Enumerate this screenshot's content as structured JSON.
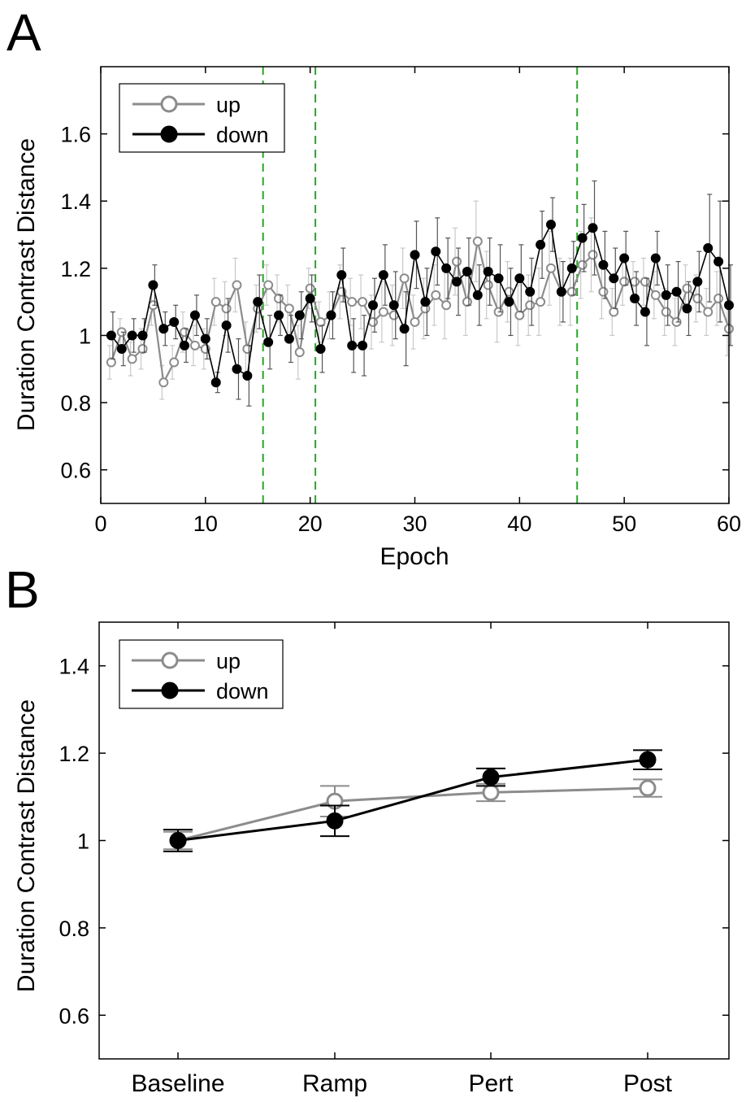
{
  "chart_data": [
    {
      "panel_label": "A",
      "type": "line",
      "xlabel": "Epoch",
      "ylabel": "Duration Contrast Distance",
      "xlim": [
        0,
        60
      ],
      "ylim": [
        0.5,
        1.8
      ],
      "xticks": [
        0,
        10,
        20,
        30,
        40,
        50,
        60
      ],
      "yticks": [
        0.6,
        0.8,
        1,
        1.2,
        1.4,
        1.6
      ],
      "ytick_labels": [
        "0.6",
        "0.8",
        "1",
        "1.2",
        "1.4",
        "1.6"
      ],
      "xtick_labels": [
        "0",
        "10",
        "20",
        "30",
        "40",
        "50",
        "60"
      ],
      "vlines": [
        15.5,
        20.5,
        45.5
      ],
      "vline_color": "#22aa22",
      "legend_position": "top-left",
      "series": [
        {
          "name": "up",
          "color": "#8c8c8c",
          "marker": "open-circle",
          "x": [
            1,
            2,
            3,
            4,
            5,
            6,
            7,
            8,
            9,
            10,
            11,
            12,
            13,
            14,
            15,
            16,
            17,
            18,
            19,
            20,
            21,
            22,
            23,
            24,
            25,
            26,
            27,
            28,
            29,
            30,
            31,
            32,
            33,
            34,
            35,
            36,
            37,
            38,
            39,
            40,
            41,
            42,
            43,
            44,
            45,
            46,
            47,
            48,
            49,
            50,
            51,
            52,
            53,
            54,
            55,
            56,
            57,
            58,
            59,
            60
          ],
          "y": [
            0.92,
            1.01,
            0.93,
            0.96,
            1.09,
            0.86,
            0.92,
            1.01,
            0.97,
            0.96,
            1.1,
            1.08,
            1.15,
            0.96,
            1.08,
            1.15,
            1.11,
            1.08,
            0.95,
            1.14,
            1.04,
            1.06,
            1.13,
            1.1,
            1.1,
            1.04,
            1.07,
            1.06,
            1.17,
            1.04,
            1.08,
            1.12,
            1.09,
            1.22,
            1.1,
            1.28,
            1.15,
            1.07,
            1.13,
            1.06,
            1.09,
            1.1,
            1.2,
            1.13,
            1.13,
            1.21,
            1.24,
            1.13,
            1.07,
            1.16,
            1.16,
            1.16,
            1.12,
            1.07,
            1.04,
            1.14,
            1.11,
            1.07,
            1.11,
            1.02
          ],
          "err": [
            0.05,
            0.04,
            0.05,
            0.06,
            0.06,
            0.05,
            0.05,
            0.06,
            0.06,
            0.06,
            0.07,
            0.08,
            0.08,
            0.08,
            0.07,
            0.06,
            0.07,
            0.07,
            0.08,
            0.06,
            0.06,
            0.07,
            0.08,
            0.07,
            0.08,
            0.08,
            0.09,
            0.09,
            0.09,
            0.08,
            0.09,
            0.09,
            0.1,
            0.1,
            0.1,
            0.12,
            0.1,
            0.09,
            0.09,
            0.09,
            0.09,
            0.1,
            0.11,
            0.1,
            0.1,
            0.1,
            0.11,
            0.08,
            0.07,
            0.07,
            0.06,
            0.07,
            0.07,
            0.07,
            0.07,
            0.07,
            0.07,
            0.07,
            0.08,
            0.08
          ]
        },
        {
          "name": "down",
          "color": "#000000",
          "marker": "filled-circle",
          "x": [
            1,
            2,
            3,
            4,
            5,
            6,
            7,
            8,
            9,
            10,
            11,
            12,
            13,
            14,
            15,
            16,
            17,
            18,
            19,
            20,
            21,
            22,
            23,
            24,
            25,
            26,
            27,
            28,
            29,
            30,
            31,
            32,
            33,
            34,
            35,
            36,
            37,
            38,
            39,
            40,
            41,
            42,
            43,
            44,
            45,
            46,
            47,
            48,
            49,
            50,
            51,
            52,
            53,
            54,
            55,
            56,
            57,
            58,
            59,
            60
          ],
          "y": [
            1.0,
            0.96,
            1.0,
            1.0,
            1.15,
            1.02,
            1.04,
            0.97,
            1.06,
            0.99,
            0.86,
            1.03,
            0.9,
            0.88,
            1.1,
            0.98,
            1.06,
            0.99,
            1.06,
            1.11,
            0.96,
            1.06,
            1.18,
            0.97,
            0.97,
            1.09,
            1.18,
            1.09,
            1.02,
            1.24,
            1.1,
            1.25,
            1.2,
            1.16,
            1.19,
            1.12,
            1.19,
            1.17,
            1.1,
            1.17,
            1.13,
            1.27,
            1.33,
            1.13,
            1.2,
            1.29,
            1.32,
            1.21,
            1.17,
            1.23,
            1.11,
            1.07,
            1.23,
            1.12,
            1.13,
            1.08,
            1.16,
            1.26,
            1.22,
            1.09
          ],
          "err": [
            0.07,
            0.05,
            0.05,
            0.05,
            0.06,
            0.05,
            0.05,
            0.05,
            0.06,
            0.06,
            0.03,
            0.08,
            0.09,
            0.09,
            0.08,
            0.08,
            0.06,
            0.07,
            0.07,
            0.07,
            0.07,
            0.07,
            0.08,
            0.08,
            0.09,
            0.08,
            0.09,
            0.1,
            0.11,
            0.1,
            0.1,
            0.1,
            0.09,
            0.1,
            0.1,
            0.09,
            0.1,
            0.1,
            0.1,
            0.1,
            0.1,
            0.1,
            0.08,
            0.09,
            0.08,
            0.1,
            0.14,
            0.1,
            0.09,
            0.08,
            0.08,
            0.1,
            0.08,
            0.09,
            0.09,
            0.08,
            0.09,
            0.16,
            0.18,
            0.12
          ]
        }
      ]
    },
    {
      "panel_label": "B",
      "type": "line",
      "xlabel": "",
      "ylabel": "Duration Contrast Distance",
      "categories": [
        "Baseline",
        "Ramp",
        "Pert",
        "Post"
      ],
      "ylim": [
        0.5,
        1.5
      ],
      "yticks": [
        0.6,
        0.8,
        1,
        1.2,
        1.4
      ],
      "ytick_labels": [
        "0.6",
        "0.8",
        "1",
        "1.2",
        "1.4"
      ],
      "legend_position": "top-left",
      "series": [
        {
          "name": "up",
          "color": "#8c8c8c",
          "marker": "open-circle",
          "values": [
            1.0,
            1.09,
            1.11,
            1.12
          ],
          "err": [
            0.02,
            0.035,
            0.02,
            0.02
          ]
        },
        {
          "name": "down",
          "color": "#000000",
          "marker": "filled-circle",
          "values": [
            1.0,
            1.045,
            1.145,
            1.185
          ],
          "err": [
            0.025,
            0.035,
            0.02,
            0.022
          ]
        }
      ]
    }
  ]
}
